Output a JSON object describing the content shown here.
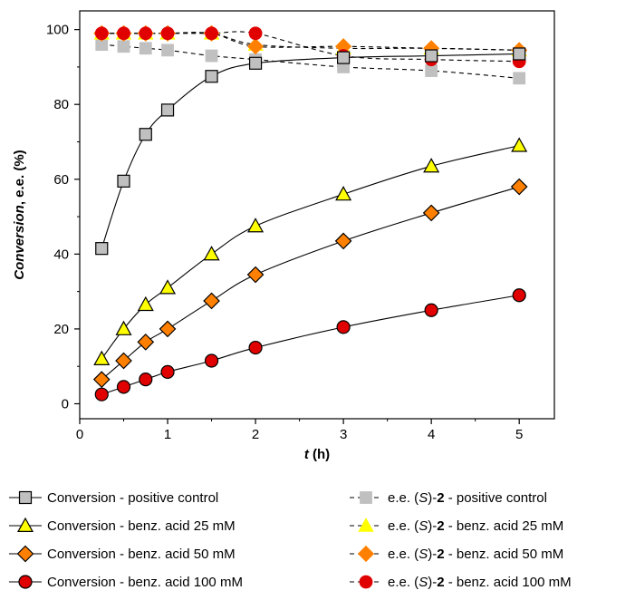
{
  "chart_data": {
    "type": "line",
    "title": "",
    "xlabel_var": "t",
    "xlabel_unit": " (h)",
    "ylabel_var": "Conversion",
    "ylabel_rest": ", e.e. (%)",
    "xlim": [
      0,
      5.4
    ],
    "ylim": [
      -4,
      105
    ],
    "x_ticks": [
      "0",
      "1",
      "2",
      "3",
      "4",
      "5"
    ],
    "y_ticks": [
      "0",
      "20",
      "40",
      "60",
      "80",
      "100"
    ],
    "grid": false,
    "legend_position": "bottom",
    "series": [
      {
        "label_prefix": "Conversion - positive control",
        "kind": "conversion",
        "marker": "square",
        "fill": "#c0c0c0",
        "stroke": "#000000",
        "x": [
          0.25,
          0.5,
          0.75,
          1.0,
          1.5,
          2.0,
          3.0,
          4.0,
          5.0
        ],
        "y": [
          41.5,
          59.5,
          72,
          78.5,
          87.5,
          91,
          92.5,
          93,
          93.5
        ]
      },
      {
        "label_prefix": "Conversion - benz. acid 25 mM",
        "kind": "conversion",
        "marker": "triangle",
        "fill": "#ffff00",
        "stroke": "#000000",
        "x": [
          0.25,
          0.5,
          0.75,
          1.0,
          1.5,
          2.0,
          3.0,
          4.0,
          5.0
        ],
        "y": [
          12,
          20,
          26.5,
          31,
          40,
          47.5,
          56,
          63.5,
          69
        ]
      },
      {
        "label_prefix": "Conversion - benz. acid 50 mM",
        "kind": "conversion",
        "marker": "diamond",
        "fill": "#ff8000",
        "stroke": "#000000",
        "x": [
          0.25,
          0.5,
          0.75,
          1.0,
          1.5,
          2.0,
          3.0,
          4.0,
          5.0
        ],
        "y": [
          6.5,
          11.5,
          16.5,
          20,
          27.5,
          34.5,
          43.5,
          51,
          58
        ]
      },
      {
        "label_prefix": "Conversion - benz. acid 100 mM",
        "kind": "conversion",
        "marker": "circle",
        "fill": "#e00000",
        "stroke": "#000000",
        "x": [
          0.25,
          0.5,
          0.75,
          1.0,
          1.5,
          2.0,
          3.0,
          4.0,
          5.0
        ],
        "y": [
          2.5,
          4.5,
          6.5,
          8.5,
          11.5,
          15,
          20.5,
          25,
          29
        ]
      },
      {
        "label_prefix": "e.e. (",
        "label_s": "S",
        "label_mid": ")-",
        "label_bold": "2",
        "label_suffix": " - positive control",
        "kind": "ee",
        "marker": "square",
        "fill": "#c0c0c0",
        "stroke": "#c0c0c0",
        "x": [
          0.25,
          0.5,
          0.75,
          1.0,
          1.5,
          2.0,
          3.0,
          4.0,
          5.0
        ],
        "y": [
          96,
          95.5,
          95,
          94.5,
          93,
          92,
          90,
          89,
          87
        ]
      },
      {
        "label_prefix": "e.e. (",
        "label_s": "S",
        "label_mid": ")-",
        "label_bold": "2",
        "label_suffix": " - benz. acid 25 mM",
        "kind": "ee",
        "marker": "triangle",
        "fill": "#ffff00",
        "stroke": "#ffff00",
        "x": [
          0.25,
          0.5,
          0.75,
          1.0,
          1.5,
          2.0,
          3.0,
          4.0,
          5.0
        ],
        "y": [
          99,
          99,
          99,
          99,
          99,
          96,
          95,
          95,
          94.5
        ]
      },
      {
        "label_prefix": "e.e. (",
        "label_s": "S",
        "label_mid": ")-",
        "label_bold": "2",
        "label_suffix": " - benz. acid 50 mM",
        "kind": "ee",
        "marker": "diamond",
        "fill": "#ff8000",
        "stroke": "#ff8000",
        "x": [
          0.25,
          0.5,
          0.75,
          1.0,
          1.5,
          2.0,
          3.0,
          4.0,
          5.0
        ],
        "y": [
          99,
          99,
          99,
          99,
          99,
          95.5,
          95.5,
          95,
          94.5
        ]
      },
      {
        "label_prefix": "e.e. (",
        "label_s": "S",
        "label_mid": ")-",
        "label_bold": "2",
        "label_suffix": " - benz. acid 100 mM",
        "kind": "ee",
        "marker": "circle",
        "fill": "#e00000",
        "stroke": "#e00000",
        "x": [
          0.25,
          0.5,
          0.75,
          1.0,
          1.5,
          2.0,
          3.0,
          4.0,
          5.0
        ],
        "y": [
          99,
          99,
          99,
          99,
          99,
          99,
          93,
          92,
          91.5
        ]
      }
    ]
  }
}
